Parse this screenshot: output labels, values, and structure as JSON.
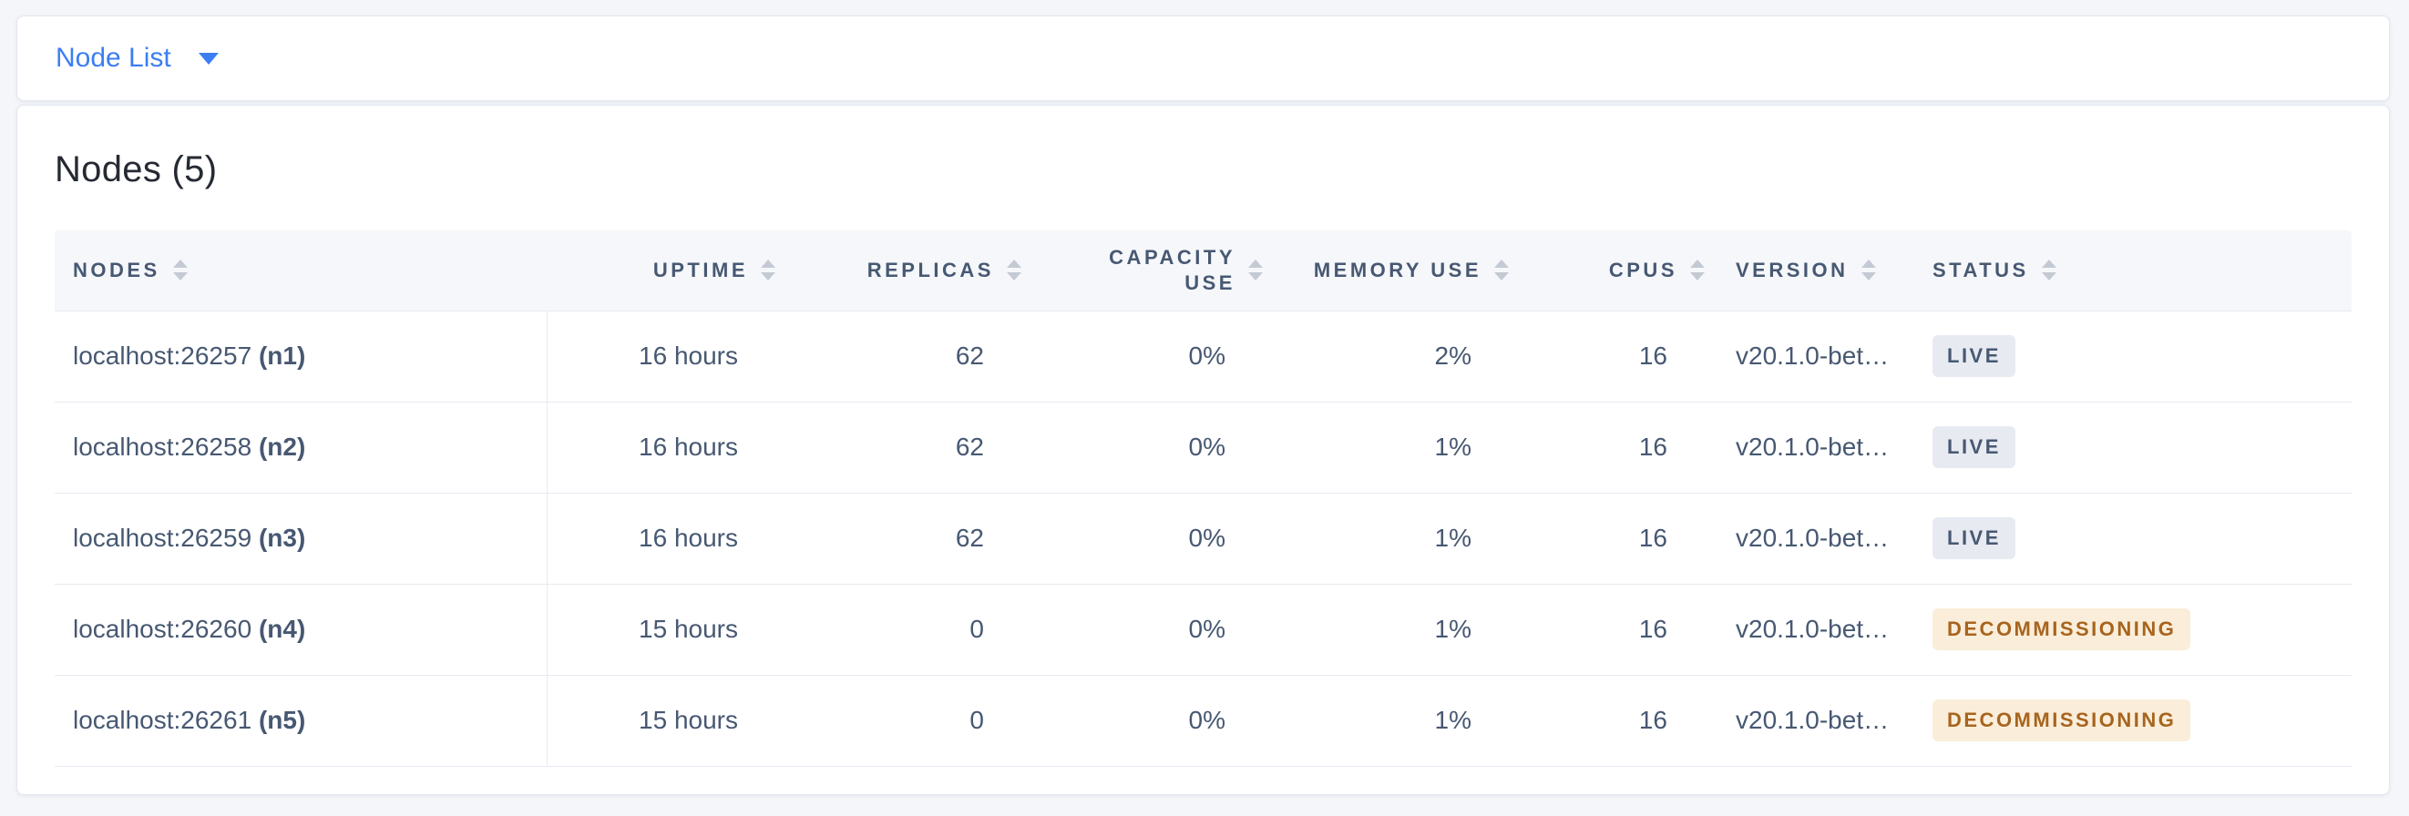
{
  "topbar": {
    "dropdown_label": "Node List"
  },
  "main": {
    "heading": "Nodes (5)"
  },
  "table": {
    "columns": [
      {
        "key": "nodes",
        "label": "NODES",
        "align": "left",
        "sortable": true
      },
      {
        "key": "uptime",
        "label": "UPTIME",
        "align": "right",
        "sortable": true
      },
      {
        "key": "replicas",
        "label": "REPLICAS",
        "align": "right",
        "sortable": true
      },
      {
        "key": "capacity_use",
        "label": "CAPACITY USE",
        "align": "right",
        "sortable": true
      },
      {
        "key": "memory_use",
        "label": "MEMORY USE",
        "align": "right",
        "sortable": true
      },
      {
        "key": "cpus",
        "label": "CPUS",
        "align": "right",
        "sortable": true
      },
      {
        "key": "version",
        "label": "VERSION",
        "align": "left",
        "sortable": true
      },
      {
        "key": "status",
        "label": "STATUS",
        "align": "left",
        "sortable": true
      }
    ],
    "rows": [
      {
        "address": "localhost:26257",
        "node_id": "(n1)",
        "uptime": "16 hours",
        "replicas": "62",
        "capacity_use": "0%",
        "memory_use": "2%",
        "cpus": "16",
        "version": "v20.1.0-bet…",
        "status": {
          "label": "LIVE",
          "variant": "live"
        }
      },
      {
        "address": "localhost:26258",
        "node_id": "(n2)",
        "uptime": "16 hours",
        "replicas": "62",
        "capacity_use": "0%",
        "memory_use": "1%",
        "cpus": "16",
        "version": "v20.1.0-bet…",
        "status": {
          "label": "LIVE",
          "variant": "live"
        }
      },
      {
        "address": "localhost:26259",
        "node_id": "(n3)",
        "uptime": "16 hours",
        "replicas": "62",
        "capacity_use": "0%",
        "memory_use": "1%",
        "cpus": "16",
        "version": "v20.1.0-bet…",
        "status": {
          "label": "LIVE",
          "variant": "live"
        }
      },
      {
        "address": "localhost:26260",
        "node_id": "(n4)",
        "uptime": "15 hours",
        "replicas": "0",
        "capacity_use": "0%",
        "memory_use": "1%",
        "cpus": "16",
        "version": "v20.1.0-bet…",
        "status": {
          "label": "DECOMMISSIONING",
          "variant": "decommissioning"
        }
      },
      {
        "address": "localhost:26261",
        "node_id": "(n5)",
        "uptime": "15 hours",
        "replicas": "0",
        "capacity_use": "0%",
        "memory_use": "1%",
        "cpus": "16",
        "version": "v20.1.0-bet…",
        "status": {
          "label": "DECOMMISSIONING",
          "variant": "decommissioning"
        }
      }
    ]
  },
  "icons": {
    "dropdown_caret": "caret-down-icon",
    "sort": "sort-arrows-icon"
  },
  "colors": {
    "accent_blue": "#3b7ef2",
    "page_bg": "#f4f6fa",
    "card_bg": "#ffffff",
    "card_border": "#e4e8ee",
    "divider": "#e7eaf1",
    "thead_bg": "#f5f7fa",
    "heading_text": "#252a33",
    "header_text": "#475872",
    "cell_text": "#475872",
    "sort_arrow": "#c4cad4",
    "badge_live_bg": "#e7eaf1",
    "badge_live_text": "#475872",
    "badge_decommissioning_bg": "#faeeda",
    "badge_decommissioning_text": "#a8641e"
  }
}
